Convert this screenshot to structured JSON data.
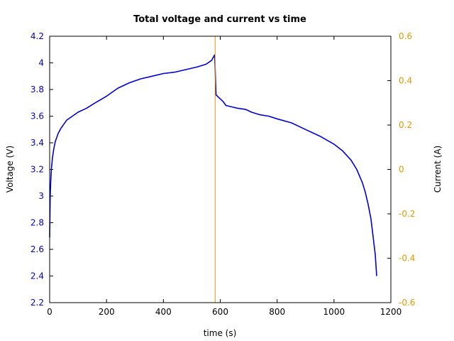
{
  "chart_data": {
    "type": "line",
    "title": "Total voltage and current vs time",
    "xlabel": "time (s)",
    "ylabel_left": "Voltage (V)",
    "ylabel_right": "Current (A)",
    "xlim": [
      0,
      1200
    ],
    "ylim_left": [
      2.2,
      4.2
    ],
    "ylim_right": [
      -0.6,
      0.6
    ],
    "x_ticks": [
      "0",
      "200",
      "400",
      "600",
      "800",
      "1000",
      "1200"
    ],
    "y_left_ticks": [
      "2.2",
      "2.4",
      "2.6",
      "2.8",
      "3",
      "3.2",
      "3.4",
      "3.6",
      "3.8",
      "4",
      "4.2"
    ],
    "y_right_ticks": [
      "-0.6",
      "-0.4",
      "-0.2",
      "0",
      "0.2",
      "0.4",
      "0.6"
    ],
    "grid": false,
    "colors": {
      "voltage": "#0000dd",
      "current": "#e09a00",
      "left_axis": "#0000cc",
      "right_axis": "#e09a00"
    },
    "series": [
      {
        "axis": "left",
        "x": [
          0,
          1,
          2,
          4,
          6,
          10,
          15,
          20,
          30,
          40,
          50,
          60,
          80,
          100,
          130,
          160,
          200,
          240,
          280,
          320,
          360,
          400,
          440,
          480,
          520,
          550,
          570,
          580,
          582,
          585,
          595,
          610,
          620,
          640,
          660,
          690,
          710,
          740,
          770,
          800,
          850,
          900,
          950,
          1000,
          1030,
          1060,
          1080,
          1100,
          1110,
          1120,
          1130,
          1140,
          1145,
          1150
        ],
        "y": [
          2.69,
          2.85,
          3.0,
          3.12,
          3.2,
          3.29,
          3.36,
          3.41,
          3.47,
          3.51,
          3.54,
          3.57,
          3.6,
          3.63,
          3.66,
          3.7,
          3.75,
          3.81,
          3.85,
          3.88,
          3.9,
          3.92,
          3.93,
          3.95,
          3.97,
          3.99,
          4.02,
          4.06,
          3.96,
          3.76,
          3.74,
          3.71,
          3.68,
          3.67,
          3.66,
          3.65,
          3.63,
          3.61,
          3.6,
          3.58,
          3.55,
          3.5,
          3.45,
          3.39,
          3.34,
          3.27,
          3.2,
          3.1,
          3.03,
          2.94,
          2.83,
          2.65,
          2.56,
          2.4
        ]
      },
      {
        "axis": "right",
        "x": [
          582,
          582
        ],
        "y": [
          -0.6,
          0.6
        ]
      }
    ]
  }
}
